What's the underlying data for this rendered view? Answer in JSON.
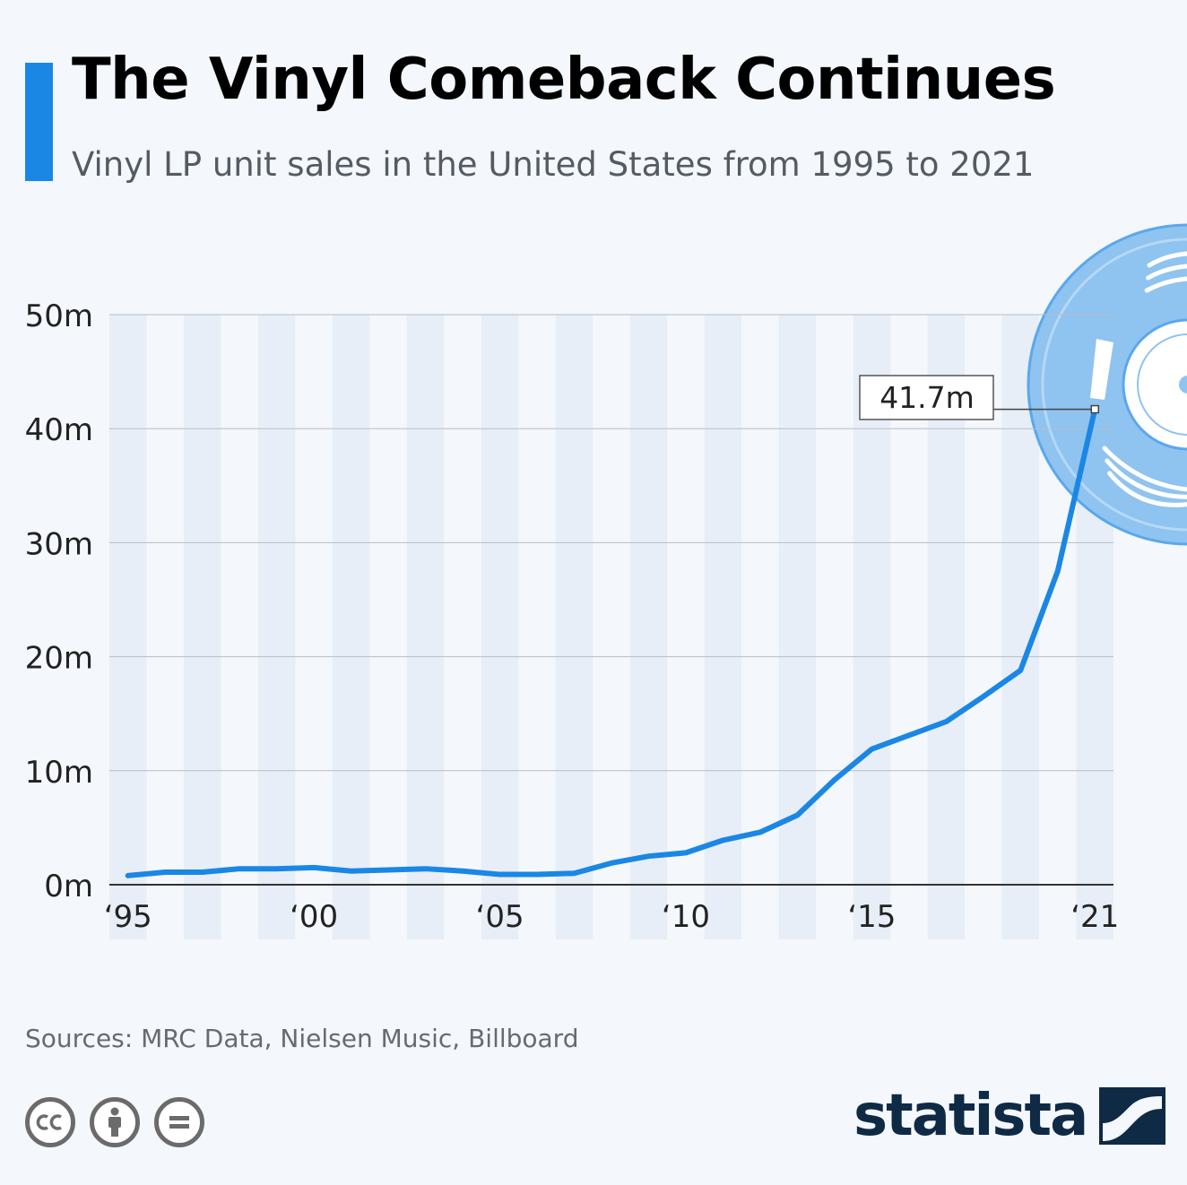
{
  "title": "The Vinyl Comeback Continues",
  "subtitle": "Vinyl LP unit sales in the United States from 1995 to 2021",
  "source": "Sources: MRC Data, Nielsen Music, Billboard",
  "brand": "statista",
  "license_icons": [
    "cc-icon",
    "attribution-icon",
    "no-derivatives-icon"
  ],
  "decoration_icon": "vinyl-record-icon",
  "colors": {
    "accent": "#1a87e5",
    "line": "#1a87e5",
    "band": "#e8eef7",
    "background": "#f4f7fb",
    "brand": "#0f2a45",
    "record": "#8fc3f0"
  },
  "chart_data": {
    "type": "line",
    "title": "The Vinyl Comeback Continues",
    "subtitle": "Vinyl LP unit sales in the United States from 1995 to 2021",
    "x": [
      1995,
      1996,
      1997,
      1998,
      1999,
      2000,
      2001,
      2002,
      2003,
      2004,
      2005,
      2006,
      2007,
      2008,
      2009,
      2010,
      2011,
      2012,
      2013,
      2014,
      2015,
      2016,
      2017,
      2018,
      2019,
      2020,
      2021
    ],
    "series": [
      {
        "values": [
          0.8,
          1.1,
          1.1,
          1.4,
          1.4,
          1.5,
          1.2,
          1.3,
          1.4,
          1.2,
          0.9,
          0.9,
          1.0,
          1.9,
          2.5,
          2.8,
          3.9,
          4.6,
          6.1,
          9.2,
          11.9,
          13.1,
          14.3,
          16.5,
          18.8,
          27.5,
          41.7
        ]
      }
    ],
    "yticks": [
      {
        "value": 0,
        "label": "0m"
      },
      {
        "value": 10,
        "label": "10m"
      },
      {
        "value": 20,
        "label": "20m"
      },
      {
        "value": 30,
        "label": "30m"
      },
      {
        "value": 40,
        "label": "40m"
      },
      {
        "value": 50,
        "label": "50m"
      }
    ],
    "xticks": [
      {
        "value": 1995,
        "label": "‘95"
      },
      {
        "value": 2000,
        "label": "‘00"
      },
      {
        "value": 2005,
        "label": "‘05"
      },
      {
        "value": 2010,
        "label": "‘10"
      },
      {
        "value": 2015,
        "label": "‘15"
      },
      {
        "value": 2021,
        "label": "‘21"
      }
    ],
    "ylim": [
      0,
      50
    ],
    "grid": true,
    "annotations": [
      {
        "x": 2021,
        "y": 41.7,
        "label": "41.7m"
      }
    ]
  }
}
